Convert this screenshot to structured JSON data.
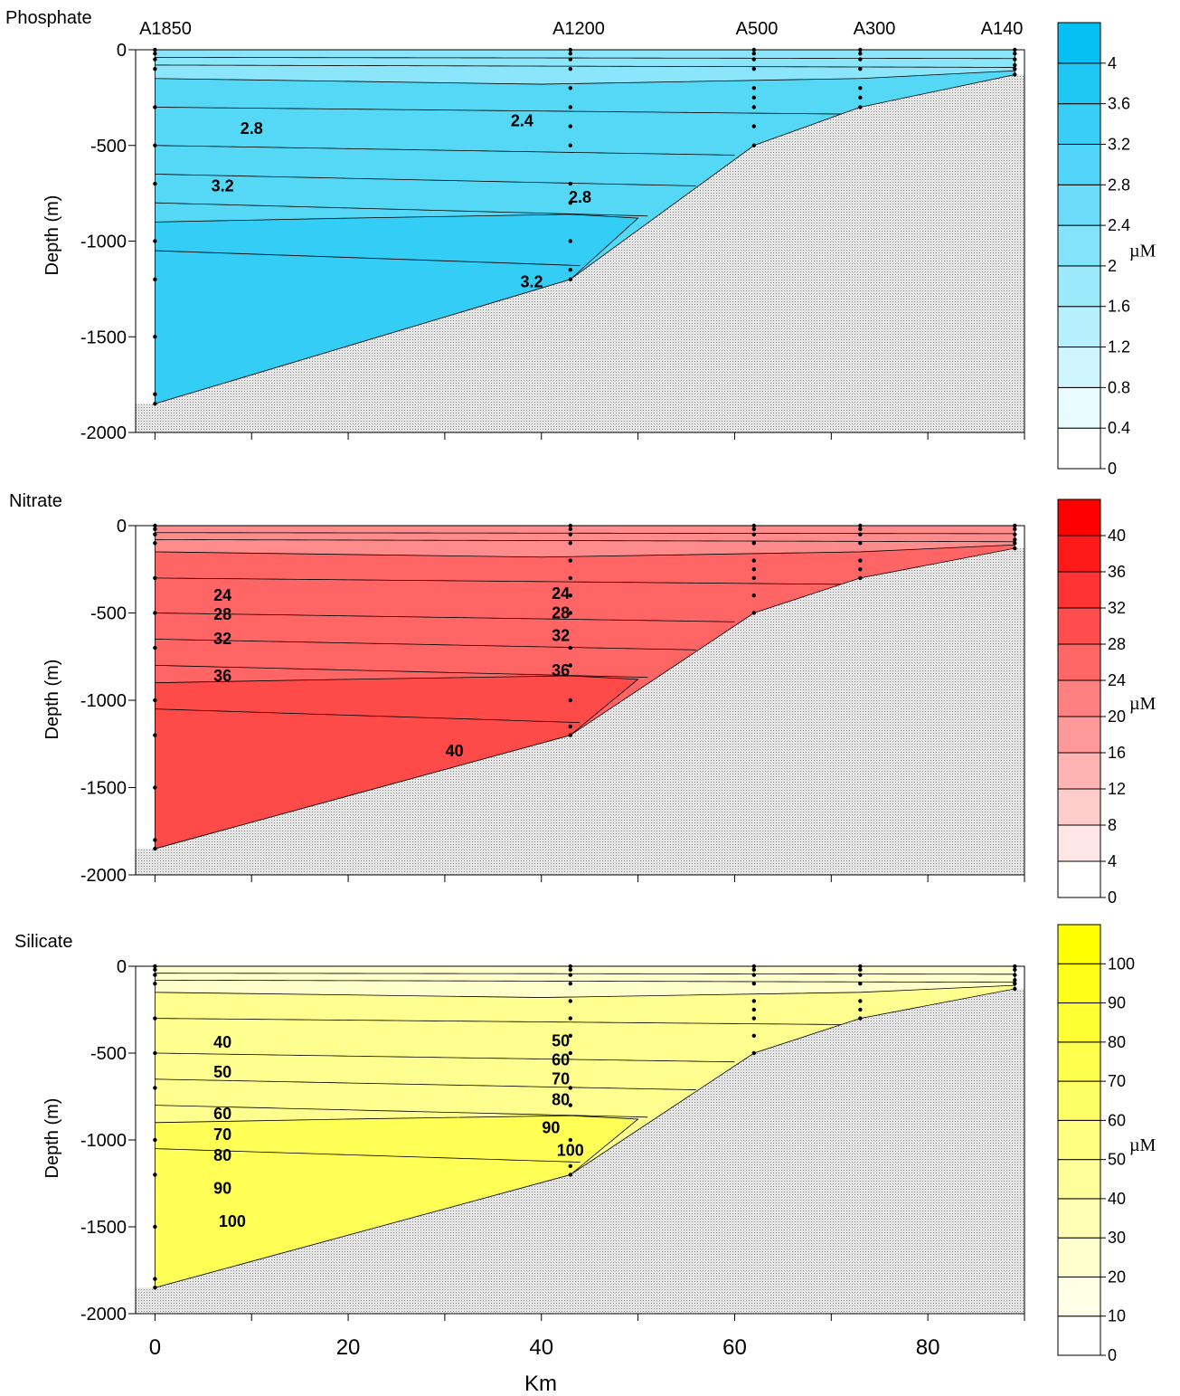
{
  "chart_data": [
    {
      "type": "heatmap",
      "title": "Phosphate",
      "ylabel": "Depth (m)",
      "xlim": [
        -2,
        90
      ],
      "ylim": [
        -2000,
        0
      ],
      "yticks": [
        0,
        -500,
        -1000,
        -1500,
        -2000
      ],
      "xticks": [
        0,
        10,
        20,
        30,
        40,
        50,
        60,
        70,
        80,
        90
      ],
      "fill_color": "#55d8f6",
      "deep_color": "#33cdf5",
      "max_color": "#1ec8f4",
      "shallow_color": "#8ce6fb",
      "colorbar": {
        "unit": "µM",
        "levels": [
          0,
          0.4,
          0.8,
          1.2,
          1.6,
          2,
          2.4,
          2.8,
          3.2,
          3.6,
          4
        ],
        "tick_labels": [
          "0",
          "0.4",
          "0.8",
          "1.2",
          "1.6",
          "2",
          "2.4",
          "2.8",
          "3.2",
          "3.6",
          "4"
        ],
        "colors": [
          "#ffffff",
          "#e8fbff",
          "#cff5fe",
          "#b6effd",
          "#9ce9fc",
          "#83e3fb",
          "#6adcf9",
          "#51d5f8",
          "#38cef6",
          "#1fc7f5",
          "#06c0f3"
        ]
      },
      "contour_labels": [
        {
          "x": 10,
          "y": -440,
          "text": "2.8"
        },
        {
          "x": 38,
          "y": -400,
          "text": "2.4"
        },
        {
          "x": 7,
          "y": -740,
          "text": "3.2"
        },
        {
          "x": 44,
          "y": -800,
          "text": "2.8"
        },
        {
          "x": 39,
          "y": -1240,
          "text": "3.2"
        }
      ]
    },
    {
      "type": "heatmap",
      "title": "Nitrate",
      "ylabel": "Depth (m)",
      "xlim": [
        -2,
        90
      ],
      "ylim": [
        -2000,
        0
      ],
      "yticks": [
        0,
        -500,
        -1000,
        -1500,
        -2000
      ],
      "xticks": [
        0,
        10,
        20,
        30,
        40,
        50,
        60,
        70,
        80,
        90
      ],
      "fill_color": "#ff6565",
      "deep_color": "#ff4a4a",
      "max_color": "#ff1f1f",
      "shallow_color": "#ff8c8c",
      "colorbar": {
        "unit": "µM",
        "levels": [
          0,
          4,
          8,
          12,
          16,
          20,
          24,
          28,
          32,
          36,
          40
        ],
        "tick_labels": [
          "0",
          "4",
          "8",
          "12",
          "16",
          "20",
          "24",
          "28",
          "32",
          "36",
          "40"
        ],
        "colors": [
          "#ffffff",
          "#ffe6e6",
          "#ffcccc",
          "#ffb3b3",
          "#ff9999",
          "#ff8080",
          "#ff6666",
          "#ff4d4d",
          "#ff3333",
          "#ff1a1a",
          "#ff0000"
        ]
      },
      "contour_labels": [
        {
          "x": 7,
          "y": -430,
          "text": "24"
        },
        {
          "x": 42,
          "y": -420,
          "text": "24"
        },
        {
          "x": 7,
          "y": -540,
          "text": "28"
        },
        {
          "x": 42,
          "y": -530,
          "text": "28"
        },
        {
          "x": 7,
          "y": -680,
          "text": "32"
        },
        {
          "x": 42,
          "y": -660,
          "text": "32"
        },
        {
          "x": 7,
          "y": -890,
          "text": "36"
        },
        {
          "x": 42,
          "y": -860,
          "text": "36"
        },
        {
          "x": 31,
          "y": -1320,
          "text": "40"
        }
      ]
    },
    {
      "type": "heatmap",
      "title": "Silicate",
      "ylabel": "Depth (m)",
      "xlabel": "Km",
      "xlim": [
        -2,
        90
      ],
      "ylim": [
        -2000,
        0
      ],
      "yticks": [
        0,
        -500,
        -1000,
        -1500,
        -2000
      ],
      "xticks": [
        0,
        10,
        20,
        30,
        40,
        50,
        60,
        70,
        80,
        90
      ],
      "xtick_labels": [
        "0",
        "20",
        "40",
        "60",
        "80"
      ],
      "xtick_label_values": [
        0,
        20,
        40,
        60,
        80
      ],
      "fill_color": "#ffff90",
      "deep_color": "#ffff55",
      "max_color": "#ffff20",
      "shallow_color": "#ffffcc",
      "colorbar": {
        "unit": "µM",
        "levels": [
          0,
          10,
          20,
          30,
          40,
          50,
          60,
          70,
          80,
          90,
          100
        ],
        "tick_labels": [
          "0",
          "10",
          "20",
          "30",
          "40",
          "50",
          "60",
          "70",
          "80",
          "90",
          "100"
        ],
        "colors": [
          "#ffffff",
          "#ffffe6",
          "#ffffcc",
          "#ffffb3",
          "#ffff99",
          "#ffff80",
          "#ffff66",
          "#ffff4d",
          "#ffff33",
          "#ffff1a",
          "#ffff00"
        ]
      },
      "contour_labels": [
        {
          "x": 7,
          "y": -470,
          "text": "40"
        },
        {
          "x": 42,
          "y": -460,
          "text": "50"
        },
        {
          "x": 7,
          "y": -640,
          "text": "50"
        },
        {
          "x": 42,
          "y": -570,
          "text": "60"
        },
        {
          "x": 7,
          "y": -880,
          "text": "60"
        },
        {
          "x": 42,
          "y": -680,
          "text": "70"
        },
        {
          "x": 7,
          "y": -1000,
          "text": "70"
        },
        {
          "x": 42,
          "y": -800,
          "text": "80"
        },
        {
          "x": 7,
          "y": -1120,
          "text": "80"
        },
        {
          "x": 41,
          "y": -960,
          "text": "90"
        },
        {
          "x": 7,
          "y": -1310,
          "text": "90"
        },
        {
          "x": 43,
          "y": -1090,
          "text": "100"
        },
        {
          "x": 8,
          "y": -1500,
          "text": "100"
        }
      ]
    }
  ],
  "stations": {
    "names": [
      "A1850",
      "A1200",
      "A500",
      "A300",
      "A140"
    ],
    "x": [
      0,
      43,
      62,
      73,
      89
    ],
    "bottom_depth": [
      -1850,
      -1200,
      -500,
      -300,
      -130
    ],
    "samples": [
      [
        0,
        -20,
        -50,
        -100,
        -300,
        -500,
        -700,
        -1000,
        -1200,
        -1500,
        -1800,
        -1850
      ],
      [
        0,
        -20,
        -50,
        -100,
        -200,
        -300,
        -400,
        -500,
        -700,
        -800,
        -1000,
        -1150,
        -1200
      ],
      [
        0,
        -20,
        -50,
        -100,
        -200,
        -250,
        -300,
        -400,
        -500
      ],
      [
        0,
        -20,
        -50,
        -100,
        -200,
        -250,
        -300
      ],
      [
        0,
        -20,
        -50,
        -80,
        -100,
        -130
      ]
    ]
  }
}
